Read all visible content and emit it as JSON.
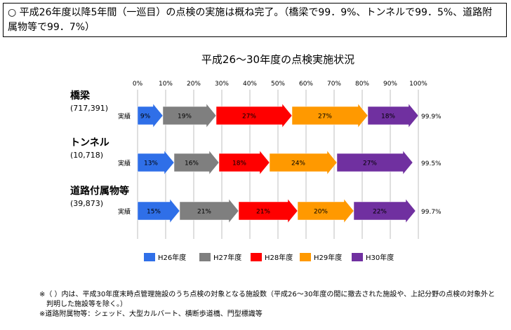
{
  "summary": {
    "marker": "○",
    "text": "平成26年度以降5年間（一巡目）の点検の実施は概ね完了。（橋梁で99．9%、トンネルで99．5%、道路附属物等で99．7%）"
  },
  "chart_data": {
    "type": "bar",
    "stacked": true,
    "orientation": "horizontal",
    "title": "平成26～30年度の点検実施状況",
    "xlim": [
      0,
      100
    ],
    "x_ticks": [
      "0%",
      "10%",
      "20%",
      "30%",
      "40%",
      "50%",
      "60%",
      "70%",
      "80%",
      "90%",
      "100%"
    ],
    "grid": true,
    "legend_position": "bottom",
    "row_label": "実績",
    "categories": [
      {
        "name": "橋梁",
        "count": "(717,391)",
        "total": "99.9%"
      },
      {
        "name": "トンネル",
        "count": "(10,718)",
        "total": "99.5%"
      },
      {
        "name": "道路付属物等",
        "count": "(39,873)",
        "total": "99.7%"
      }
    ],
    "series": [
      {
        "name": "H26年度",
        "color": "#2f6fe8",
        "values": [
          9,
          13,
          15
        ],
        "labels": [
          "9%",
          "13%",
          "15%"
        ]
      },
      {
        "name": "H27年度",
        "color": "#7f7f7f",
        "values": [
          19,
          16,
          21
        ],
        "labels": [
          "19%",
          "16%",
          "21%"
        ]
      },
      {
        "name": "H28年度",
        "color": "#ff0000",
        "values": [
          27,
          18,
          21
        ],
        "labels": [
          "27%",
          "18%",
          "21%"
        ]
      },
      {
        "name": "H29年度",
        "color": "#ff9900",
        "values": [
          27,
          24,
          20
        ],
        "labels": [
          "27%",
          "24%",
          "20%"
        ]
      },
      {
        "name": "H30年度",
        "color": "#7030a0",
        "values": [
          18,
          27,
          22
        ],
        "labels": [
          "18%",
          "27%",
          "22%"
        ]
      }
    ]
  },
  "footnotes": [
    "※（ ）内は、平成30年度末時点管理施設のうち点検の対象となる施設数（平成26～30年度の間に撤去された施設や、上記分野の点検の対象外と",
    "　判明した施設等を除く。）",
    "※道路附属物等：シェッド、大型カルバート、横断歩道橋、門型標識等"
  ]
}
